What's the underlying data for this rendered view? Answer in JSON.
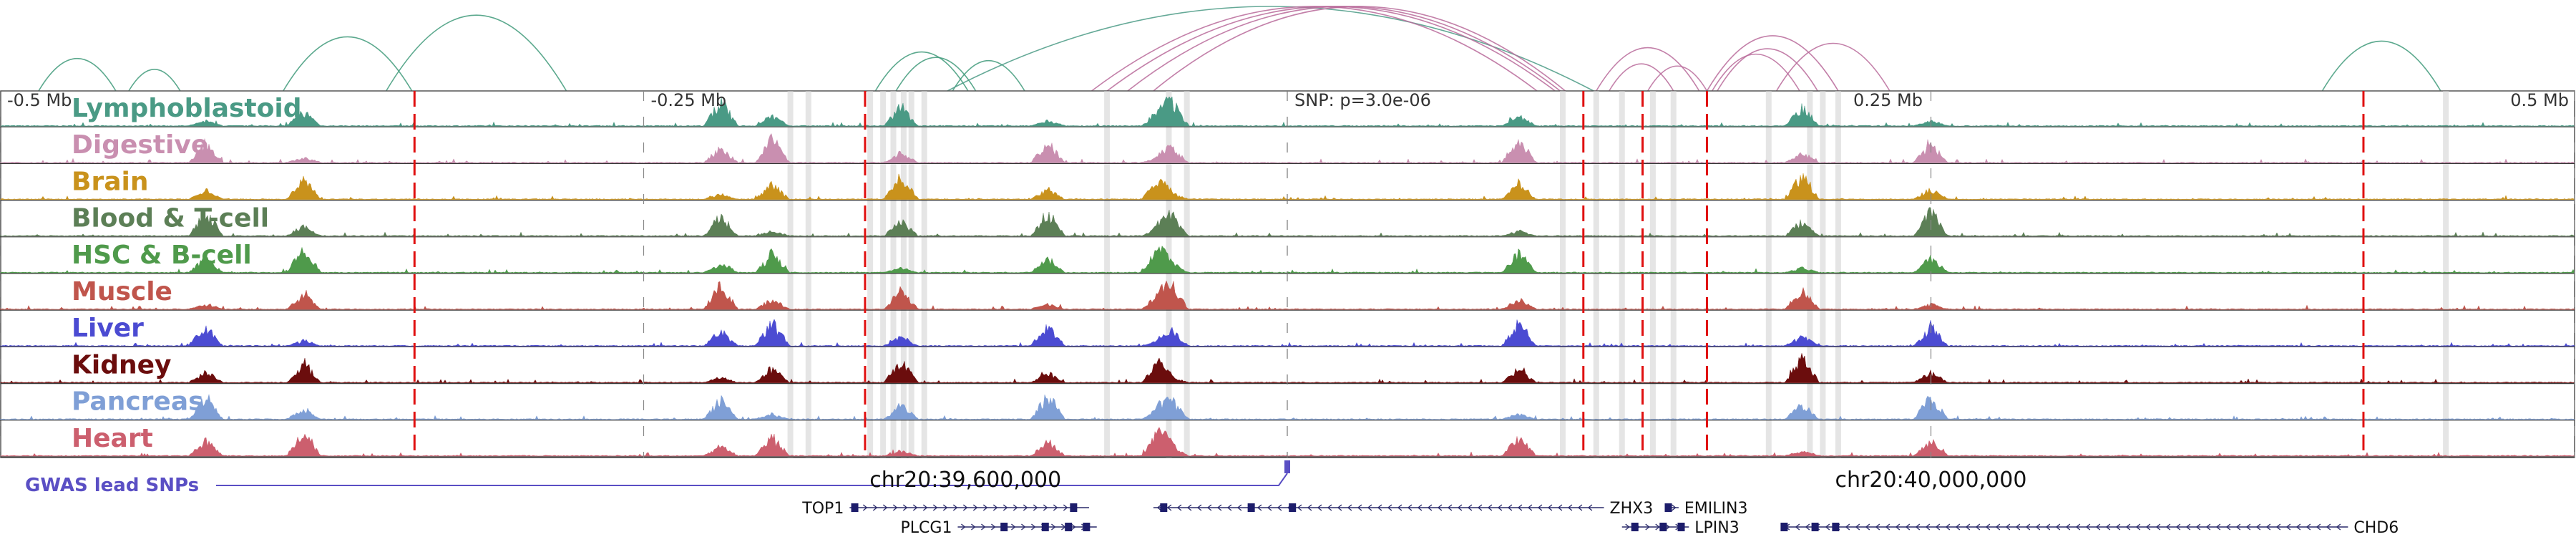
{
  "chart_data": {
    "type": "area",
    "title": "",
    "genome_axis": {
      "chrom": "chr20",
      "center_label": "SNP: p=3.0e-06",
      "tick_labels": [
        "-0.5 Mb",
        "-0.25 Mb",
        "0.25 Mb",
        "0.5 Mb"
      ],
      "tick_values_mb": [
        -0.5,
        -0.25,
        0.25,
        0.5
      ],
      "view_range_mb": [
        -0.5,
        0.5
      ],
      "coordinate_labels": [
        {
          "text": "chr20:39,600,000",
          "mb": -0.125
        },
        {
          "text": "chr20:40,000,000",
          "mb": 0.25
        }
      ]
    },
    "tracks": [
      {
        "name": "Lymphoblastoid",
        "color": "#4a9a85"
      },
      {
        "name": "Digestive",
        "color": "#c98fb0"
      },
      {
        "name": "Brain",
        "color": "#c9921c"
      },
      {
        "name": "Blood & T-cell",
        "color": "#5c7f56"
      },
      {
        "name": "HSC & B-cell",
        "color": "#4f9a4b"
      },
      {
        "name": "Muscle",
        "color": "#c0554c"
      },
      {
        "name": "Liver",
        "color": "#4b4bd2"
      },
      {
        "name": "Kidney",
        "color": "#6b0d0d"
      },
      {
        "name": "Pancreas",
        "color": "#7f9fd6"
      },
      {
        "name": "Heart",
        "color": "#cc5f6e"
      }
    ],
    "red_dashed_marks_mb": [
      -0.339,
      -0.164,
      0.115,
      0.138,
      0.163,
      0.418
    ],
    "gray_highlights_mb": [
      -0.193,
      -0.186,
      -0.162,
      -0.157,
      -0.153,
      -0.149,
      -0.146,
      -0.141,
      -0.07,
      -0.046,
      -0.039,
      0.107,
      0.12,
      0.13,
      0.142,
      0.15,
      0.187,
      0.203,
      0.208,
      0.214,
      0.45
    ],
    "peak_regions_mb": [
      -0.42,
      -0.382,
      -0.22,
      -0.2,
      -0.15,
      -0.093,
      -0.05,
      -0.045,
      0.09,
      0.2,
      0.25
    ],
    "arcs_mb": [
      [
        -0.485,
        -0.455
      ],
      [
        -0.43,
        -0.45
      ],
      [
        -0.39,
        -0.34
      ],
      [
        -0.35,
        -0.28
      ],
      [
        -0.16,
        -0.124
      ],
      [
        -0.152,
        -0.121
      ],
      [
        -0.13,
        -0.102
      ],
      [
        -0.132,
        0.119
      ],
      [
        -0.052,
        0.108
      ],
      [
        -0.062,
        0.106
      ],
      [
        -0.07,
        0.104
      ],
      [
        -0.076,
        0.097
      ],
      [
        0.12,
        0.16
      ],
      [
        0.125,
        0.15
      ],
      [
        0.14,
        0.163
      ],
      [
        0.163,
        0.214
      ],
      [
        0.167,
        0.206
      ],
      [
        0.19,
        0.234
      ],
      [
        0.165,
        0.199
      ],
      [
        0.402,
        0.448
      ]
    ],
    "gwas": {
      "label": "GWAS lead SNPs",
      "snps_mb": [
        0.0
      ]
    },
    "genes": [
      {
        "name": "TOP1",
        "start_mb": -0.17,
        "end_mb": -0.077,
        "strand": "+",
        "exons_mb": [
          -0.168,
          -0.083
        ]
      },
      {
        "name": "PLCG1",
        "start_mb": -0.128,
        "end_mb": -0.074,
        "strand": "+",
        "exons_mb": [
          -0.11,
          -0.094,
          -0.085,
          -0.078
        ]
      },
      {
        "name": "ZHX3",
        "start_mb": -0.052,
        "end_mb": 0.123,
        "strand": "-",
        "exons_mb": [
          -0.048,
          -0.014,
          0.002
        ]
      },
      {
        "name": "EMILIN3",
        "start_mb": 0.148,
        "end_mb": 0.152,
        "strand": "+",
        "exons_mb": [
          0.148
        ]
      },
      {
        "name": "LPIN3",
        "start_mb": 0.13,
        "end_mb": 0.156,
        "strand": "+",
        "exons_mb": [
          0.135,
          0.146,
          0.153
        ]
      },
      {
        "name": "CHD6",
        "start_mb": 0.192,
        "end_mb": 0.412,
        "strand": "-",
        "exons_mb": [
          0.193,
          0.205,
          0.213
        ]
      }
    ]
  }
}
